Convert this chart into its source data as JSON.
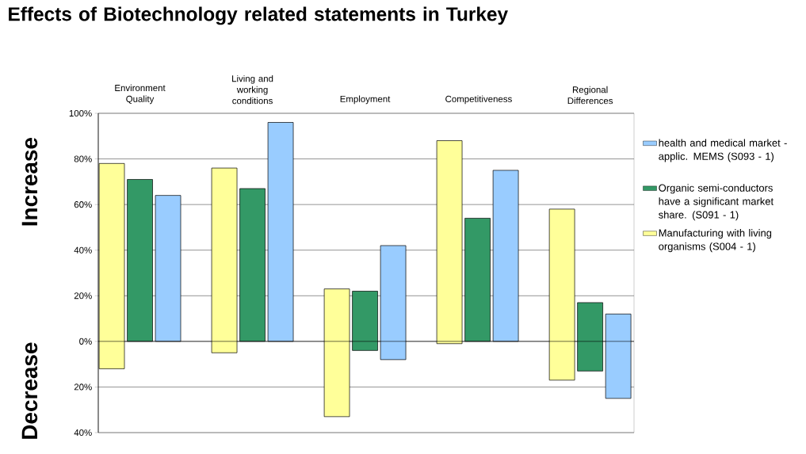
{
  "chart_data": {
    "type": "bar",
    "title": "Effects of Biotechnology related statements in Turkey",
    "annotations": [
      "Increase",
      "Decrease"
    ],
    "categories": [
      "Environment Quality",
      "Living and working conditions",
      "Employment",
      "Competitiveness",
      "Regional Differences"
    ],
    "series": [
      {
        "name": "Manufacturing with living organisms (S004 - 1)",
        "color": "#ffff99",
        "base": [
          -12,
          -5,
          -33,
          -1,
          -17
        ],
        "values": [
          90,
          81,
          56,
          89,
          75
        ]
      },
      {
        "name": "Organic semi-conductors have a significant market share. (S091 - 1)",
        "color": "#339966",
        "base": [
          0,
          0,
          -4,
          0,
          -13
        ],
        "values": [
          71,
          67,
          26,
          54,
          30
        ]
      },
      {
        "name": "health and medical market - applic. MEMS (S093 - 1)",
        "color": "#99ccff",
        "base": [
          0,
          0,
          -8,
          0,
          -25
        ],
        "values": [
          64,
          96,
          50,
          75,
          37
        ]
      }
    ],
    "ylim": [
      -40,
      100
    ],
    "yticks": [
      {
        "value": -40,
        "label": "40%"
      },
      {
        "value": -20,
        "label": "20%"
      },
      {
        "value": 0,
        "label": "0%"
      },
      {
        "value": 20,
        "label": "20%"
      },
      {
        "value": 40,
        "label": "40%"
      },
      {
        "value": 60,
        "label": "60%"
      },
      {
        "value": 80,
        "label": "80%"
      },
      {
        "value": 100,
        "label": "100%"
      }
    ],
    "grid": "y",
    "legend": "right"
  }
}
